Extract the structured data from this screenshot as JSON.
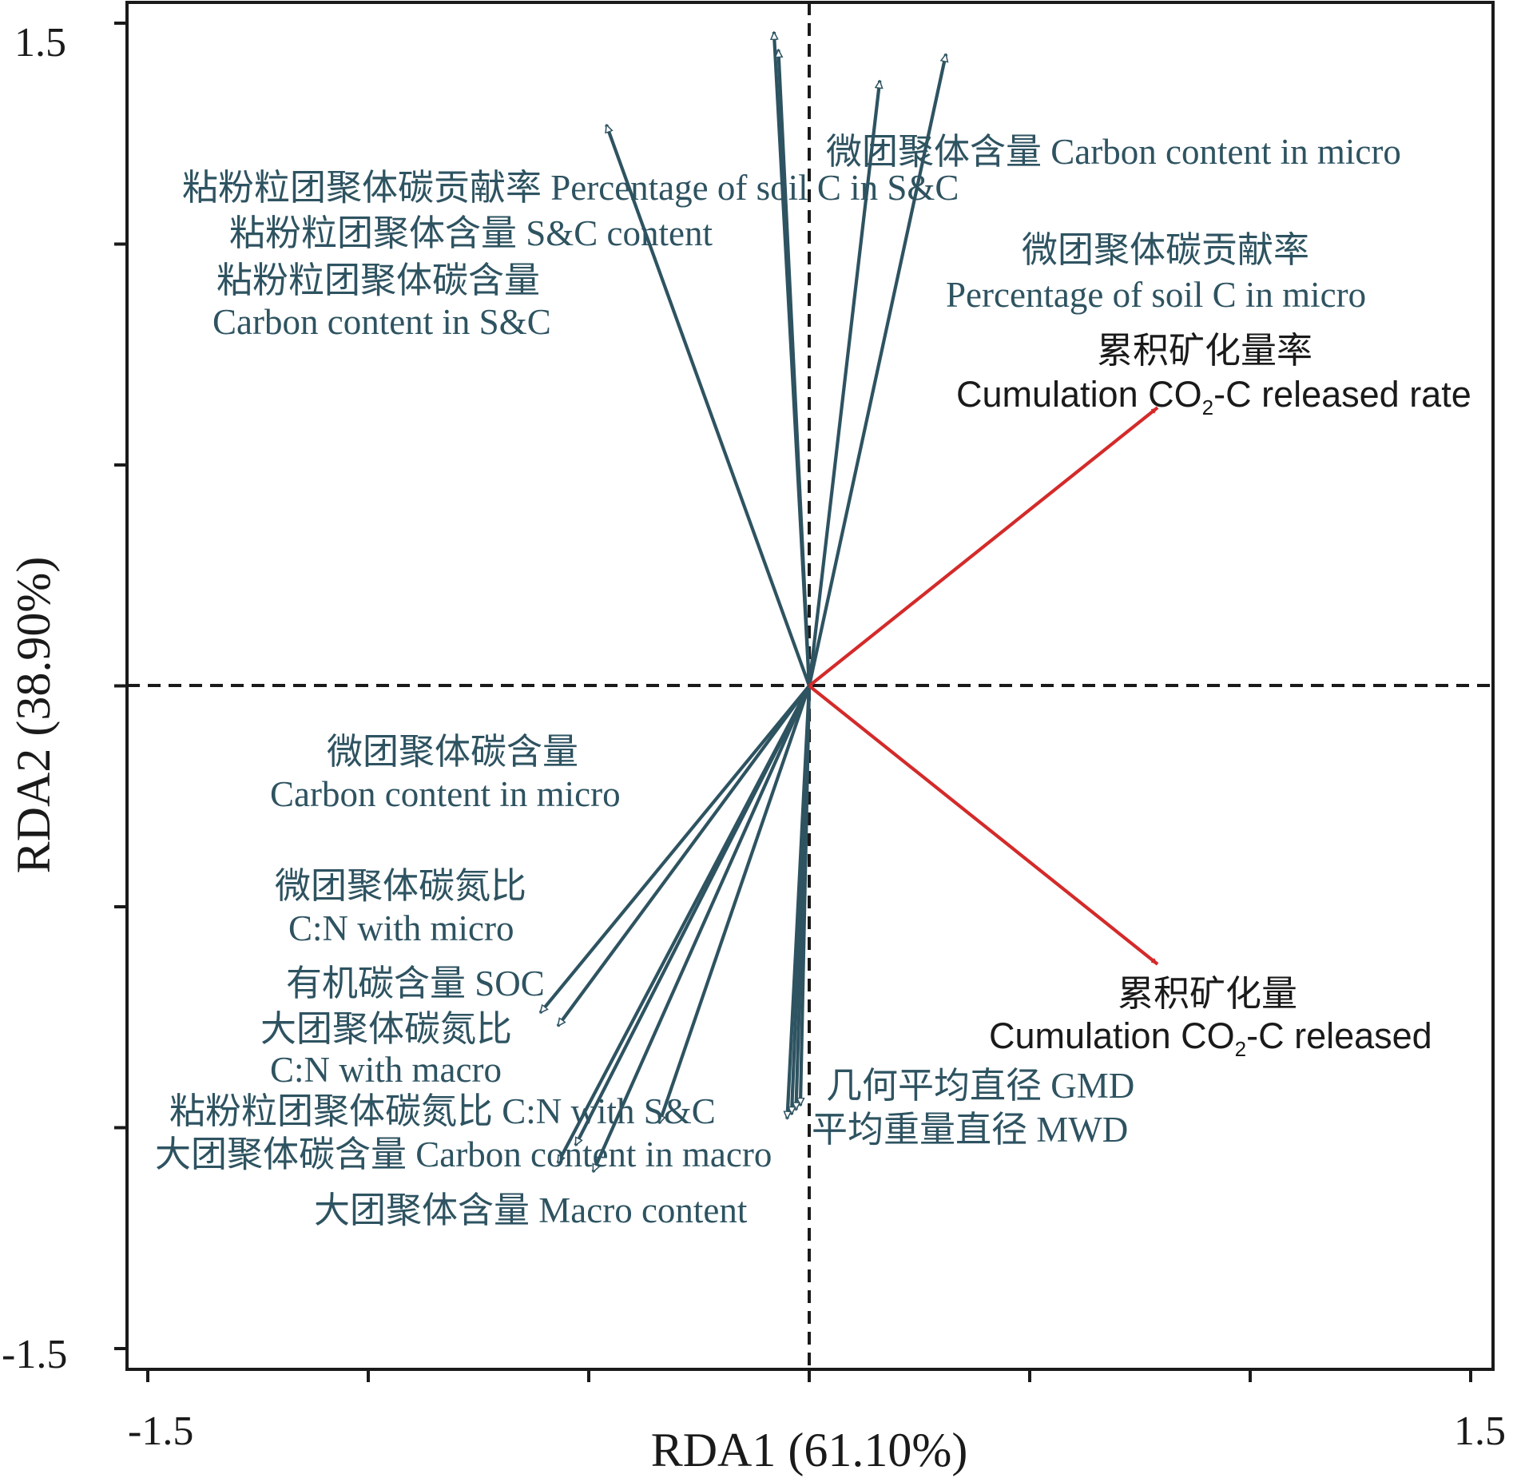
{
  "chart_data": {
    "type": "biplot",
    "xlabel": "RDA1 (61.10%)",
    "ylabel": "RDA2 (38.90%)",
    "xlim": [
      -1.5,
      1.5
    ],
    "ylim": [
      -1.5,
      1.5
    ],
    "x_tick_labels": [
      "-1.5",
      "1.5"
    ],
    "y_tick_labels": [
      "1.5",
      "-1.5"
    ],
    "colors": {
      "species": "#2e5361",
      "environment": "#d42a2a",
      "frame": "#1a1a1a"
    },
    "species_arrows": [
      {
        "name": "Carbon content in S&C",
        "x": -0.46,
        "y": 1.27,
        "label_lines": [
          "粘粉粒团聚体碳含量",
          "Carbon content in S&C"
        ]
      },
      {
        "name": "S&C content",
        "x": -0.08,
        "y": 1.48,
        "label_lines": [
          "粘粉粒团聚体含量 S&C content"
        ]
      },
      {
        "name": "Percentage of soil C in S&C",
        "x": -0.07,
        "y": 1.44,
        "label_lines": [
          "粘粉粒团聚体碳贡献率 Percentage of soil C in S&C"
        ]
      },
      {
        "name": "Carbon content in micro",
        "x": 0.16,
        "y": 1.37,
        "label_lines": [
          "微团聚体含量 Carbon content in micro"
        ]
      },
      {
        "name": "Percentage of soil C in micro",
        "x": 0.31,
        "y": 1.43,
        "label_lines": [
          "微团聚体碳贡献率",
          "Percentage of soil C in micro"
        ]
      },
      {
        "name": "Carbon content in micro (carbon)",
        "x": -0.61,
        "y": -0.74,
        "label_lines": [
          "微团聚体碳含量",
          "Carbon content in micro"
        ]
      },
      {
        "name": "C:N with micro",
        "x": -0.57,
        "y": -0.77,
        "label_lines": [
          "微团聚体碳氮比",
          "C:N with micro"
        ]
      },
      {
        "name": "SOC",
        "x": -0.34,
        "y": -0.99,
        "label_lines": [
          "有机碳含量 SOC"
        ]
      },
      {
        "name": "C:N with macro",
        "x": -0.53,
        "y": -1.04,
        "label_lines": [
          "大团聚体碳氮比",
          "C:N with macro"
        ]
      },
      {
        "name": "C:N with macro 2",
        "x": -0.57,
        "y": -1.08,
        "label_lines": []
      },
      {
        "name": "C:N with S&C",
        "x": -0.49,
        "y": -1.1,
        "label_lines": [
          "粘粉粒团聚体碳氮比 C:N with S&C"
        ]
      },
      {
        "name": "GMD",
        "x": -0.02,
        "y": -0.95,
        "label_lines": [
          "几何平均直径 GMD"
        ]
      },
      {
        "name": "MWD",
        "x": -0.03,
        "y": -0.96,
        "label_lines": [
          "平均重量直径 MWD"
        ]
      },
      {
        "name": "Carbon content in macro",
        "x": -0.04,
        "y": -0.97,
        "label_lines": [
          "大团聚体碳含量 Carbon content in macro"
        ]
      },
      {
        "name": "Macro content",
        "x": -0.05,
        "y": -0.98,
        "label_lines": [
          "大团聚体含量 Macro content"
        ]
      }
    ],
    "environment_arrows": [
      {
        "name": "Cumulation CO2-C released rate",
        "x": 0.79,
        "y": 0.63,
        "label_cn": "累积矿化量率",
        "label_pre": "Cumulation CO",
        "label_sub": "2",
        "label_post": "-C released rate"
      },
      {
        "name": "Cumulation CO2-C released",
        "x": 0.79,
        "y": -0.63,
        "label_cn": "累积矿化量",
        "label_pre": "Cumulation CO",
        "label_sub": "2",
        "label_post": "-C released"
      }
    ]
  }
}
